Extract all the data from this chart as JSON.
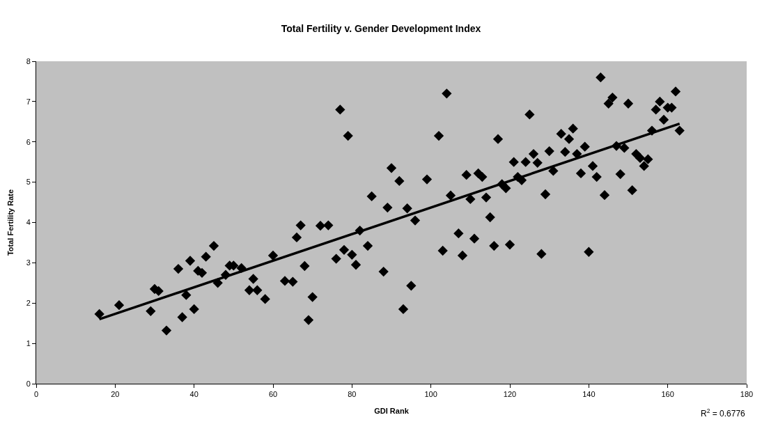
{
  "chart_data": {
    "type": "scatter",
    "title": "Total Fertility v. Gender Development Index",
    "xlabel": "GDI Rank",
    "ylabel": "Total Fertility Rate",
    "xlim": [
      0,
      180
    ],
    "xticks": [
      0,
      20,
      40,
      60,
      80,
      100,
      120,
      140,
      160,
      180
    ],
    "ylim": [
      0,
      8
    ],
    "yticks": [
      0,
      1,
      2,
      3,
      4,
      5,
      6,
      7,
      8
    ],
    "grid": false,
    "marker": "diamond",
    "annotations": [
      "R$^{2}$ = 0.6776"
    ],
    "series": [
      {
        "color": "#000000",
        "x": [
          16,
          21,
          29,
          30,
          31,
          33,
          36,
          37,
          38,
          39,
          40,
          41,
          42,
          43,
          45,
          46,
          48,
          49,
          50,
          52,
          54,
          55,
          56,
          58,
          60,
          63,
          65,
          66,
          67,
          68,
          69,
          70,
          72,
          74,
          76,
          77,
          78,
          79,
          80,
          81,
          82,
          84,
          85,
          88,
          89,
          90,
          92,
          93,
          94,
          95,
          96,
          99,
          102,
          103,
          104,
          105,
          107,
          108,
          109,
          110,
          111,
          112,
          113,
          114,
          115,
          116,
          117,
          118,
          119,
          120,
          121,
          122,
          123,
          124,
          125,
          126,
          127,
          128,
          129,
          130,
          131,
          133,
          134,
          135,
          136,
          137,
          138,
          139,
          140,
          141,
          142,
          143,
          144,
          145,
          146,
          147,
          148,
          149,
          150,
          151,
          152,
          153,
          154,
          155,
          156,
          157,
          158,
          159,
          160,
          161,
          162,
          163
        ],
        "values": [
          1.73,
          1.95,
          1.8,
          2.35,
          2.3,
          1.32,
          2.85,
          1.65,
          2.2,
          3.05,
          1.85,
          2.8,
          2.75,
          3.15,
          3.42,
          2.5,
          2.7,
          2.93,
          2.93,
          2.87,
          2.32,
          2.6,
          2.32,
          2.1,
          3.18,
          2.55,
          2.53,
          3.63,
          3.93,
          2.92,
          1.58,
          2.15,
          3.92,
          3.93,
          3.1,
          6.8,
          3.32,
          6.15,
          3.2,
          2.95,
          3.8,
          3.42,
          4.65,
          2.78,
          4.37,
          5.35,
          5.03,
          1.85,
          4.35,
          2.43,
          4.05,
          5.07,
          6.15,
          3.3,
          7.2,
          4.67,
          3.73,
          3.18,
          5.18,
          4.58,
          3.6,
          5.22,
          5.13,
          4.62,
          4.13,
          3.42,
          6.07,
          4.95,
          4.85,
          3.45,
          5.5,
          5.13,
          5.05,
          5.5,
          6.68,
          5.7,
          5.48,
          3.22,
          4.7,
          5.77,
          5.28,
          6.2,
          5.75,
          6.07,
          6.33,
          5.7,
          5.22,
          5.88,
          3.27,
          5.4,
          5.13,
          7.6,
          4.68,
          6.95,
          7.1,
          5.9,
          5.2,
          5.85,
          6.95,
          4.8,
          5.7,
          5.6,
          5.4,
          5.57,
          6.28,
          6.8,
          7.0,
          6.55,
          6.85,
          6.85,
          7.25,
          6.28
        ]
      },
      {
        "type": "line",
        "color": "#000000",
        "marker": "none",
        "x": [
          16,
          163
        ],
        "values": [
          1.6,
          6.45
        ]
      }
    ]
  }
}
